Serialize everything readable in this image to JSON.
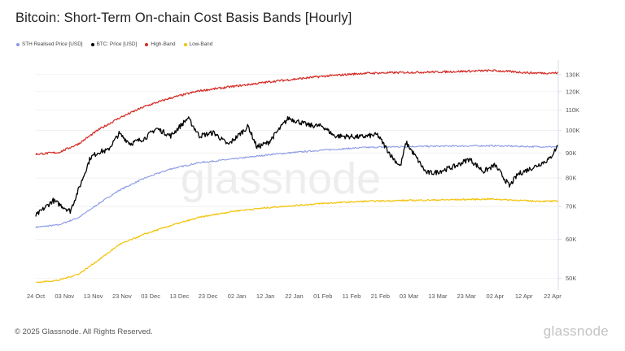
{
  "header": {
    "title": "Bitcoin: Short-Term On-chain Cost Basis Bands [Hourly]"
  },
  "footer": {
    "copyright": "© 2025 Glassnode. All Rights Reserved.",
    "brand": "glassnode"
  },
  "colors": {
    "sth": "#8c9ae6",
    "btc": "#000000",
    "high": "#d42a24",
    "low": "#f2c40c",
    "grid": "#eeeeee",
    "axis": "#d6dce8"
  },
  "chart_data": {
    "type": "line",
    "title": "Bitcoin: Short-Term On-chain Cost Basis Bands [Hourly]",
    "watermark": "glassnode",
    "yscale": "log",
    "ylim": [
      48000,
      136000
    ],
    "xlim": [
      "2024-10-24",
      "2025-04-24"
    ],
    "grid": "horizontal",
    "legend_position": "top-left",
    "y_ticks": [
      50000,
      60000,
      70000,
      80000,
      90000,
      100000,
      110000,
      120000,
      130000
    ],
    "y_tick_labels": [
      "50K",
      "60K",
      "70K",
      "80K",
      "90K",
      "100K",
      "110K",
      "120K",
      "130K"
    ],
    "x_ticks": [
      "2024-10-24",
      "2024-11-03",
      "2024-11-13",
      "2024-11-23",
      "2024-12-03",
      "2024-12-13",
      "2024-12-23",
      "2025-01-02",
      "2025-01-12",
      "2025-01-22",
      "2025-02-01",
      "2025-02-11",
      "2025-02-21",
      "2025-03-03",
      "2025-03-13",
      "2025-03-23",
      "2025-04-02",
      "2025-04-12",
      "2025-04-22"
    ],
    "x_tick_labels": [
      "24 Oct",
      "03 Nov",
      "13 Nov",
      "23 Nov",
      "03 Dec",
      "13 Dec",
      "23 Dec",
      "02 Jan",
      "12 Jan",
      "22 Jan",
      "01 Feb",
      "11 Feb",
      "21 Feb",
      "03 Mar",
      "13 Mar",
      "23 Mar",
      "02 Apr",
      "12 Apr",
      "22 Apr"
    ],
    "series": [
      {
        "name": "STH Realised Price [USD]",
        "key": "sth",
        "x": [
          "2024-10-24",
          "2024-11-01",
          "2024-11-08",
          "2024-11-15",
          "2024-11-22",
          "2024-12-01",
          "2024-12-10",
          "2024-12-20",
          "2025-01-01",
          "2025-01-15",
          "2025-02-01",
          "2025-02-15",
          "2025-03-01",
          "2025-03-15",
          "2025-04-01",
          "2025-04-15",
          "2025-04-24"
        ],
        "values": [
          63500,
          64200,
          66500,
          71000,
          75500,
          80000,
          83500,
          86000,
          87500,
          89500,
          91200,
          92300,
          92700,
          92900,
          93100,
          92700,
          92600
        ]
      },
      {
        "name": "BTC: Price [USD]",
        "key": "btc",
        "x": [
          "2024-10-24",
          "2024-10-30",
          "2024-11-05",
          "2024-11-08",
          "2024-11-12",
          "2024-11-15",
          "2024-11-18",
          "2024-11-22",
          "2024-11-26",
          "2024-12-01",
          "2024-12-05",
          "2024-12-10",
          "2024-12-16",
          "2024-12-20",
          "2024-12-25",
          "2024-12-30",
          "2025-01-06",
          "2025-01-09",
          "2025-01-13",
          "2025-01-20",
          "2025-01-27",
          "2025-02-01",
          "2025-02-05",
          "2025-02-14",
          "2025-02-20",
          "2025-02-25",
          "2025-02-28",
          "2025-03-02",
          "2025-03-05",
          "2025-03-09",
          "2025-03-12",
          "2025-03-19",
          "2025-03-24",
          "2025-03-29",
          "2025-04-02",
          "2025-04-07",
          "2025-04-10",
          "2025-04-16",
          "2025-04-21",
          "2025-04-24"
        ],
        "values": [
          67000,
          72000,
          68500,
          76000,
          88000,
          90500,
          91000,
          98500,
          94000,
          96500,
          101000,
          97500,
          106000,
          97500,
          99000,
          93500,
          102000,
          92500,
          94500,
          106000,
          102500,
          102000,
          97500,
          97000,
          98000,
          88500,
          84500,
          94500,
          89000,
          82000,
          82000,
          84500,
          87500,
          82500,
          85000,
          77000,
          81500,
          84500,
          87500,
          93500
        ]
      },
      {
        "name": "High-Band",
        "key": "high",
        "x": [
          "2024-10-24",
          "2024-11-01",
          "2024-11-08",
          "2024-11-15",
          "2024-11-22",
          "2024-12-01",
          "2024-12-10",
          "2024-12-20",
          "2025-01-01",
          "2025-01-15",
          "2025-02-01",
          "2025-02-15",
          "2025-03-01",
          "2025-03-15",
          "2025-04-01",
          "2025-04-15",
          "2025-04-24"
        ],
        "values": [
          89500,
          90200,
          94000,
          100500,
          106000,
          112000,
          116500,
          120500,
          123000,
          126000,
          129000,
          130800,
          131300,
          131700,
          132500,
          131000,
          131000
        ]
      },
      {
        "name": "Low-Band",
        "key": "low",
        "x": [
          "2024-10-24",
          "2024-11-01",
          "2024-11-08",
          "2024-11-15",
          "2024-11-22",
          "2024-12-01",
          "2024-12-10",
          "2024-12-20",
          "2025-01-01",
          "2025-01-15",
          "2025-02-01",
          "2025-02-15",
          "2025-03-01",
          "2025-03-15",
          "2025-04-01",
          "2025-04-15",
          "2025-04-24"
        ],
        "values": [
          49000,
          49500,
          51000,
          54500,
          58500,
          61500,
          64000,
          66500,
          68500,
          69800,
          71000,
          71700,
          72000,
          72200,
          72500,
          71800,
          71700
        ]
      }
    ]
  }
}
